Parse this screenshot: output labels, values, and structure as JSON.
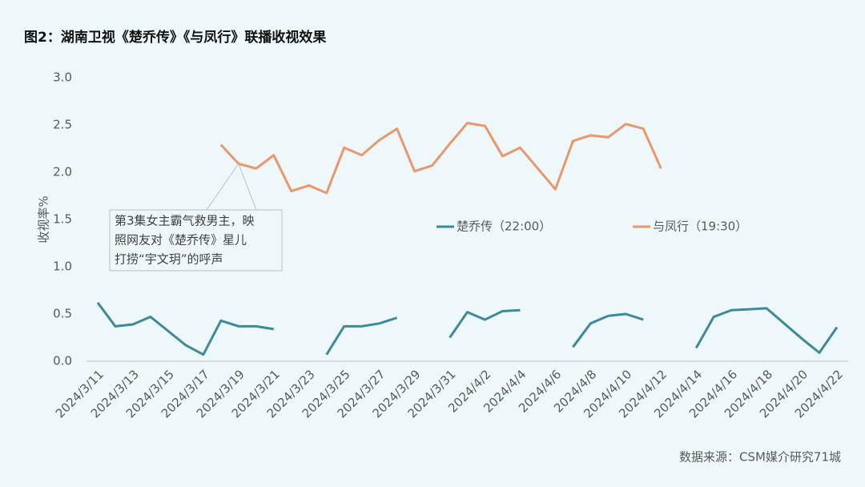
{
  "chart_data": {
    "type": "line",
    "title": "图2：湖南卫视《楚乔传》《与凤行》联播收视效果",
    "y_label": "收视率%",
    "source": "数据来源：CSM媒介研究71城",
    "annotation": [
      "第3集女主霸气救男主，映",
      "照网友对《楚乔传》星儿",
      "打捞“宇文玥”的呼声"
    ],
    "categories": [
      "2024/3/11",
      null,
      "2024/3/13",
      null,
      "2024/3/15",
      null,
      "2024/3/17",
      null,
      "2024/3/19",
      null,
      "2024/3/21",
      null,
      "2024/3/23",
      null,
      "2024/3/25",
      null,
      "2024/3/27",
      null,
      "2024/3/29",
      null,
      "2024/3/31",
      null,
      "2024/4/2",
      null,
      "2024/4/4",
      null,
      "2024/4/6",
      null,
      "2024/4/8",
      null,
      "2024/4/10",
      null,
      "2024/4/12",
      null,
      "2024/4/14",
      null,
      "2024/4/16",
      null,
      "2024/4/18",
      null,
      "2024/4/20",
      null,
      "2024/4/22"
    ],
    "series": [
      {
        "name": "楚乔传（22:00）",
        "color": "#3f8a99",
        "values": [
          0.62,
          0.37,
          0.39,
          0.47,
          0.32,
          0.17,
          0.07,
          0.43,
          0.37,
          0.37,
          0.34,
          null,
          null,
          0.07,
          0.37,
          0.37,
          0.4,
          0.46,
          null,
          null,
          0.25,
          0.52,
          0.44,
          0.53,
          0.54,
          null,
          null,
          0.15,
          0.4,
          0.48,
          0.5,
          0.44,
          null,
          null,
          0.14,
          0.47,
          0.54,
          0.55,
          0.56,
          0.4,
          0.24,
          0.09,
          0.36
        ]
      },
      {
        "name": "与凤行（19:30）",
        "color": "#e9976d",
        "values": [
          null,
          null,
          null,
          null,
          null,
          null,
          null,
          2.29,
          2.09,
          2.04,
          2.18,
          1.8,
          1.86,
          1.78,
          2.26,
          2.18,
          2.34,
          2.46,
          2.01,
          2.07,
          2.3,
          2.52,
          2.49,
          2.17,
          2.26,
          2.04,
          1.82,
          2.33,
          2.39,
          2.37,
          2.51,
          2.46,
          2.04,
          null,
          null,
          null,
          null,
          null,
          null,
          null,
          null,
          null,
          null
        ]
      }
    ],
    "ylim": [
      0,
      3
    ],
    "yticks": [
      {
        "value": 0,
        "label": "0.0"
      },
      {
        "value": 0.5,
        "label": "0.5"
      },
      {
        "value": 1,
        "label": "1.0"
      },
      {
        "value": 1.5,
        "label": "1.5"
      },
      {
        "value": 2,
        "label": "2.0"
      },
      {
        "value": 2.5,
        "label": "2.5"
      },
      {
        "value": 3,
        "label": "3.0"
      }
    ],
    "grid": false
  }
}
